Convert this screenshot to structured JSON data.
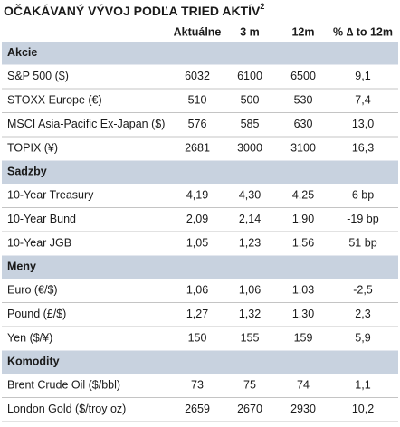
{
  "title": {
    "text": "OČAKÁVANÝ VÝVOJ PODĽA TRIED AKTÍV",
    "sup": "2"
  },
  "header": [
    "Aktuálne",
    "3 m",
    "12m",
    "% ∆ to 12m"
  ],
  "sections": [
    {
      "name": "Akcie",
      "rows": [
        [
          "S&P 500 ($)",
          "6032",
          "6100",
          "6500",
          "9,1"
        ],
        [
          "STOXX Europe (€)",
          "510",
          "500",
          "530",
          "7,4"
        ],
        [
          "MSCI Asia-Pacific Ex-Japan ($)",
          "576",
          "585",
          "630",
          "13,0"
        ],
        [
          "TOPIX (¥)",
          "2681",
          "3000",
          "3100",
          "16,3"
        ]
      ]
    },
    {
      "name": "Sadzby",
      "rows": [
        [
          "10-Year Treasury",
          "4,19",
          "4,30",
          "4,25",
          "6 bp"
        ],
        [
          "10-Year Bund",
          "2,09",
          "2,14",
          "1,90",
          "-19 bp"
        ],
        [
          "10-Year JGB",
          "1,05",
          "1,23",
          "1,56",
          "51 bp"
        ]
      ]
    },
    {
      "name": "Meny",
      "rows": [
        [
          "Euro (€/$)",
          "1,06",
          "1,06",
          "1,03",
          "-2,5"
        ],
        [
          "Pound (£/$)",
          "1,27",
          "1,32",
          "1,30",
          "2,3"
        ],
        [
          "Yen ($/¥)",
          "150",
          "155",
          "159",
          "5,9"
        ]
      ]
    },
    {
      "name": "Komodity",
      "rows": [
        [
          "Brent Crude Oil ($/bbl)",
          "73",
          "75",
          "74",
          "1,1"
        ],
        [
          "London Gold ($/troy oz)",
          "2659",
          "2670",
          "2930",
          "10,2"
        ]
      ]
    }
  ]
}
